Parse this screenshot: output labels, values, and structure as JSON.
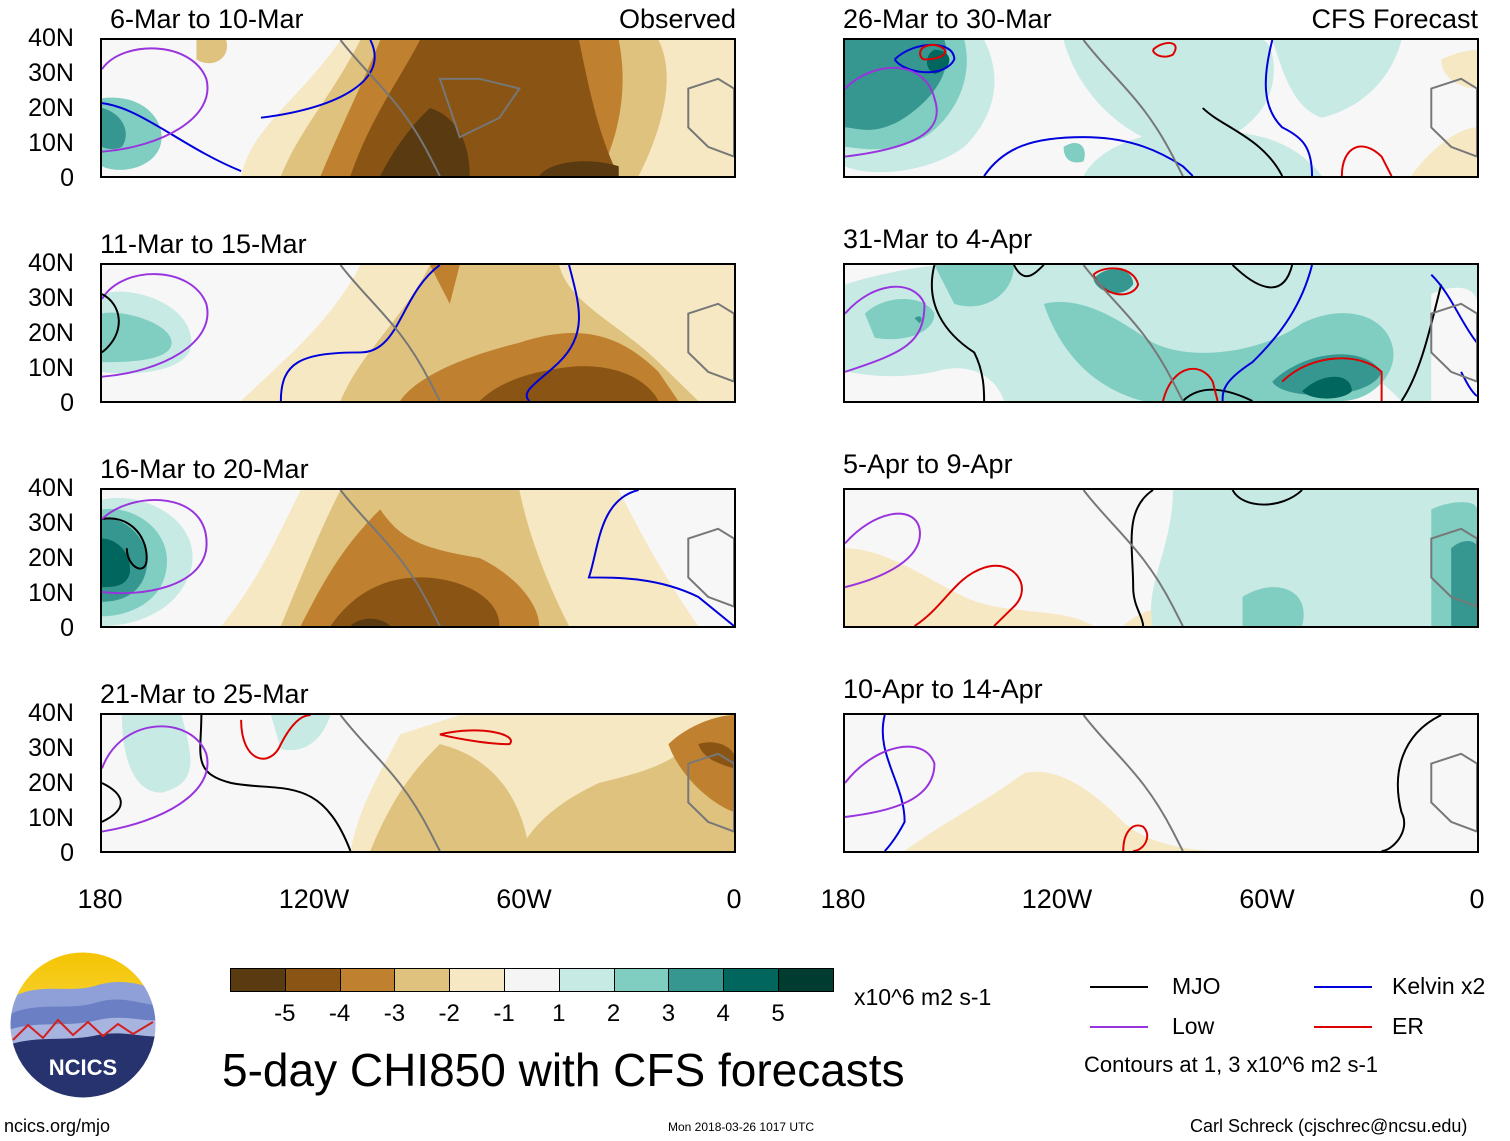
{
  "chart_data": {
    "type": "heatmap",
    "title": "5-day CHI850 with CFS forecasts",
    "variable": "CHI850",
    "units": "x10^6 m2 s-1",
    "y_ticks": [
      "40N",
      "30N",
      "20N",
      "10N",
      "0"
    ],
    "x_ticks": [
      "180",
      "120W",
      "60W",
      "0"
    ],
    "ylim": [
      0,
      40
    ],
    "xlim": [
      -180,
      0
    ],
    "colorbar": {
      "ticks": [
        "-5",
        "-4",
        "-3",
        "-2",
        "-1",
        "1",
        "2",
        "3",
        "4",
        "5"
      ],
      "colors": [
        "#5a3a10",
        "#8a5414",
        "#bf8130",
        "#dfc27d",
        "#f6e8c3",
        "#f5f5f5",
        "#c7eae5",
        "#80cdc1",
        "#35978f",
        "#01665e",
        "#003c30"
      ]
    },
    "contour_legend": [
      {
        "name": "MJO",
        "color": "#000000"
      },
      {
        "name": "Kelvin x2",
        "color": "#0000dd"
      },
      {
        "name": "Low",
        "color": "#9933dd"
      },
      {
        "name": "ER",
        "color": "#dd0000"
      }
    ],
    "contour_note": "Contours at 1, 3 x10^6 m2 s-1",
    "panels": [
      {
        "period": "6-Mar to 10-Mar",
        "label": "Observed",
        "mean_anomaly": -3
      },
      {
        "period": "11-Mar to 15-Mar",
        "label": "",
        "mean_anomaly": -1.5
      },
      {
        "period": "16-Mar to 20-Mar",
        "label": "",
        "mean_anomaly": -2
      },
      {
        "period": "21-Mar to 25-Mar",
        "label": "",
        "mean_anomaly": -1.2
      },
      {
        "period": "26-Mar to 30-Mar",
        "label": "CFS Forecast",
        "mean_anomaly": 1.5
      },
      {
        "period": "31-Mar to 4-Apr",
        "label": "",
        "mean_anomaly": 2
      },
      {
        "period": "5-Apr to 9-Apr",
        "label": "",
        "mean_anomaly": 1
      },
      {
        "period": "10-Apr to 14-Apr",
        "label": "",
        "mean_anomaly": -0.8
      }
    ]
  },
  "logo": {
    "text": "NCICS"
  },
  "footer": {
    "url": "ncics.org/mjo",
    "timestamp": "Mon 2018-03-26 1017 UTC",
    "author": "Carl Schreck (cjschrec@ncsu.edu)"
  }
}
